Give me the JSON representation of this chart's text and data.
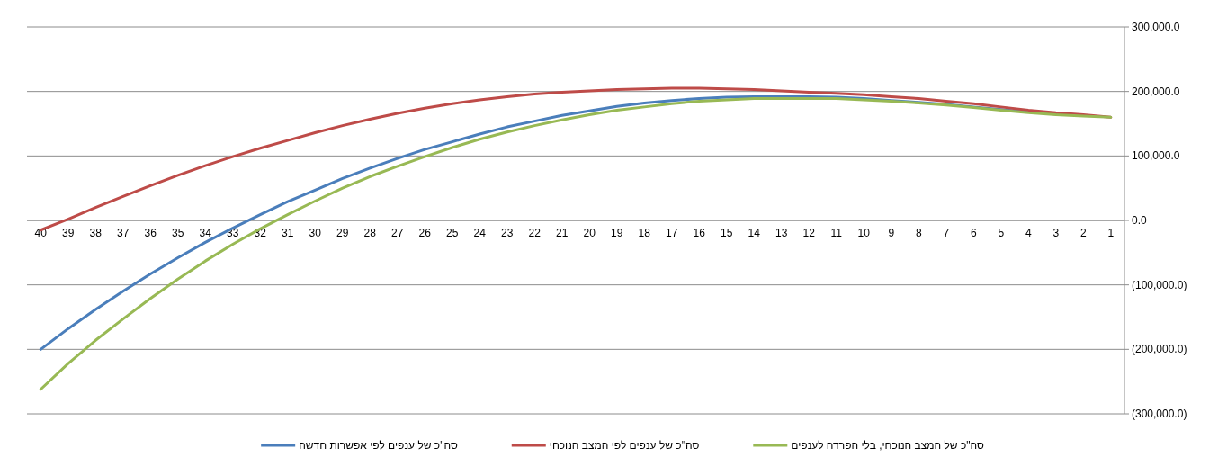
{
  "chart_data": {
    "type": "line",
    "categories": [
      "40",
      "39",
      "38",
      "37",
      "36",
      "35",
      "34",
      "33",
      "32",
      "31",
      "30",
      "29",
      "28",
      "27",
      "26",
      "25",
      "24",
      "23",
      "22",
      "21",
      "20",
      "19",
      "18",
      "17",
      "16",
      "15",
      "14",
      "13",
      "12",
      "11",
      "10",
      "9",
      "8",
      "7",
      "6",
      "5",
      "4",
      "3",
      "2",
      "1"
    ],
    "series": [
      {
        "name": "סה\"כ של ענפים לפי אפשרות חדשה",
        "color": "#4a7ebb",
        "values": [
          -200000,
          -168000,
          -138000,
          -110000,
          -83000,
          -58000,
          -34000,
          -12000,
          9000,
          29000,
          47000,
          65000,
          81000,
          96000,
          110000,
          122000,
          134000,
          145000,
          154000,
          163000,
          170000,
          177000,
          182000,
          186000,
          189000,
          191000,
          192000,
          192000,
          192000,
          191000,
          189000,
          186000,
          183000,
          180000,
          176000,
          172000,
          168000,
          165000,
          null,
          null
        ]
      },
      {
        "name": "סה\"כ של ענפים לפי המצב הנוכחי",
        "color": "#be4b48",
        "values": [
          -15000,
          2000,
          20000,
          37000,
          54000,
          70000,
          85000,
          99000,
          112000,
          124000,
          136000,
          147000,
          157000,
          166000,
          174000,
          181000,
          187000,
          192000,
          196000,
          199000,
          201000,
          203000,
          204000,
          205000,
          205000,
          204000,
          203000,
          201000,
          199000,
          197000,
          195000,
          192000,
          189000,
          185000,
          181000,
          176000,
          171000,
          167000,
          164000,
          160000
        ]
      },
      {
        "name": "סה\"כ של המצב הנוכחי, בלי הפרדה לענפים",
        "color": "#98b954",
        "values": [
          -262000,
          -222000,
          -186000,
          -153000,
          -121000,
          -91000,
          -63000,
          -37000,
          -13000,
          9000,
          30000,
          50000,
          68000,
          84000,
          99000,
          113000,
          126000,
          137000,
          147000,
          156000,
          164000,
          171000,
          176000,
          181000,
          185000,
          187000,
          189000,
          189000,
          189000,
          189000,
          187000,
          185000,
          182000,
          179000,
          175000,
          171000,
          167000,
          164000,
          162000,
          160000
        ]
      }
    ],
    "ylim": [
      -300000,
      300000
    ],
    "yticks": [
      {
        "value": -300000,
        "label": "(300,000.0)"
      },
      {
        "value": -200000,
        "label": "(200,000.0)"
      },
      {
        "value": -100000,
        "label": "(100,000.0)"
      },
      {
        "value": 0,
        "label": "0.0"
      },
      {
        "value": 100000,
        "label": "100,000.0"
      },
      {
        "value": 200000,
        "label": "200,000.0"
      },
      {
        "value": 300000,
        "label": "300,000.0"
      }
    ],
    "grid": "y",
    "legend": "bottom",
    "marker": "none",
    "line_style": "solid"
  }
}
